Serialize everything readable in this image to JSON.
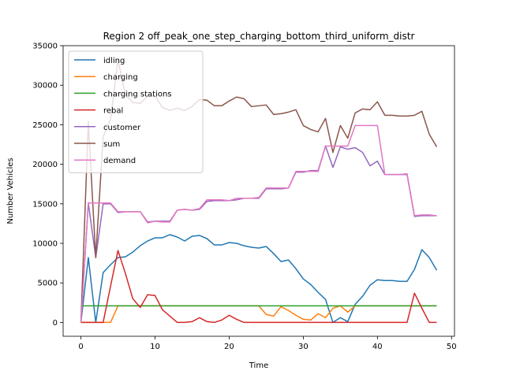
{
  "chart_data": {
    "type": "line",
    "title": "Region 2 off_peak_one_step_charging_bottom_third_uniform_distr",
    "xlabel": "Time",
    "ylabel": "Number Vehicles",
    "xlim": [
      -2.4,
      50.4
    ],
    "ylim": [
      -1750,
      35000
    ],
    "xticks": [
      0,
      10,
      20,
      30,
      40,
      50
    ],
    "yticks": [
      0,
      5000,
      10000,
      15000,
      20000,
      25000,
      30000,
      35000
    ],
    "x": [
      0,
      1,
      2,
      3,
      4,
      5,
      6,
      7,
      8,
      9,
      10,
      11,
      12,
      13,
      14,
      15,
      16,
      17,
      18,
      19,
      20,
      21,
      22,
      23,
      24,
      25,
      26,
      27,
      28,
      29,
      30,
      31,
      32,
      33,
      34,
      35,
      36,
      37,
      38,
      39,
      40,
      41,
      42,
      43,
      44,
      45,
      46,
      47,
      48
    ],
    "legend_position": "upper left",
    "series": [
      {
        "name": "idling",
        "color": "#1f77b4",
        "values": [
          0,
          8200,
          0,
          6300,
          7300,
          8200,
          8300,
          8900,
          9700,
          10300,
          10700,
          10700,
          11100,
          10800,
          10300,
          10900,
          11000,
          10600,
          9800,
          9800,
          10100,
          10000,
          9700,
          9500,
          9400,
          9600,
          8700,
          7700,
          7900,
          6800,
          5500,
          4800,
          3800,
          2900,
          0,
          600,
          100,
          2300,
          3300,
          4700,
          5400,
          5300,
          5300,
          5200,
          5200,
          6700,
          9200,
          8200,
          6600
        ]
      },
      {
        "name": "charging",
        "color": "#ff7f0e",
        "values": [
          0,
          0,
          0,
          0,
          0,
          2100,
          2100,
          2100,
          2100,
          2100,
          2100,
          2100,
          2100,
          2100,
          2100,
          2100,
          2100,
          2100,
          2100,
          2100,
          2100,
          2100,
          2100,
          2100,
          2100,
          1000,
          800,
          2000,
          1500,
          900,
          400,
          300,
          1100,
          600,
          1800,
          2100,
          1300,
          2100,
          2100,
          2100,
          2100,
          2100,
          2100,
          2100,
          2100,
          2100,
          2100,
          2100,
          2100
        ]
      },
      {
        "name": "charging stations",
        "color": "#2ca02c",
        "values": [
          2100,
          2100,
          2100,
          2100,
          2100,
          2100,
          2100,
          2100,
          2100,
          2100,
          2100,
          2100,
          2100,
          2100,
          2100,
          2100,
          2100,
          2100,
          2100,
          2100,
          2100,
          2100,
          2100,
          2100,
          2100,
          2100,
          2100,
          2100,
          2100,
          2100,
          2100,
          2100,
          2100,
          2100,
          2100,
          2100,
          2100,
          2100,
          2100,
          2100,
          2100,
          2100,
          2100,
          2100,
          2100,
          2100,
          2100,
          2100,
          2100
        ]
      },
      {
        "name": "rebal",
        "color": "#d62728",
        "values": [
          0,
          0,
          0,
          0,
          4600,
          9100,
          6200,
          3000,
          1900,
          3500,
          3400,
          1600,
          800,
          0,
          0,
          100,
          600,
          100,
          0,
          300,
          900,
          400,
          0,
          0,
          0,
          0,
          0,
          0,
          0,
          0,
          0,
          0,
          0,
          0,
          0,
          0,
          0,
          0,
          0,
          0,
          0,
          0,
          0,
          0,
          0,
          3700,
          1800,
          0,
          0
        ]
      },
      {
        "name": "customer",
        "color": "#9467bd",
        "values": [
          0,
          15100,
          8200,
          15000,
          15000,
          13900,
          14000,
          14000,
          14000,
          12700,
          12800,
          12800,
          12800,
          14200,
          14300,
          14200,
          14300,
          15300,
          15400,
          15400,
          15400,
          15500,
          15700,
          15700,
          15700,
          16900,
          16900,
          16900,
          17000,
          19000,
          19000,
          19200,
          19200,
          22300,
          19600,
          22200,
          21900,
          22100,
          21500,
          19800,
          20400,
          18700,
          18700,
          18700,
          18700,
          13400,
          13500,
          13500,
          13500
        ]
      },
      {
        "name": "sum",
        "color": "#8c564b",
        "values": [
          0,
          25400,
          8200,
          23500,
          25700,
          33200,
          28800,
          27800,
          27700,
          28600,
          28600,
          27200,
          26800,
          27100,
          26800,
          27300,
          28200,
          28100,
          27400,
          27400,
          28000,
          28500,
          28300,
          27300,
          27400,
          27500,
          26300,
          26400,
          26600,
          26900,
          24900,
          24400,
          24100,
          25800,
          21500,
          24900,
          23300,
          26500,
          27000,
          26900,
          27900,
          26200,
          26200,
          26100,
          26100,
          26200,
          26700,
          23800,
          22200
        ]
      },
      {
        "name": "demand",
        "color": "#e377c2",
        "values": [
          0,
          15100,
          15100,
          15100,
          15100,
          14000,
          14000,
          14000,
          14000,
          12600,
          12800,
          12700,
          12700,
          14200,
          14300,
          14200,
          14400,
          15500,
          15500,
          15500,
          15400,
          15700,
          15700,
          15700,
          15800,
          17000,
          17000,
          17000,
          17000,
          19100,
          19100,
          19100,
          19100,
          22300,
          22300,
          22300,
          22300,
          24900,
          24900,
          24900,
          24900,
          18700,
          18700,
          18700,
          18800,
          13500,
          13600,
          13600,
          13500
        ]
      }
    ]
  }
}
